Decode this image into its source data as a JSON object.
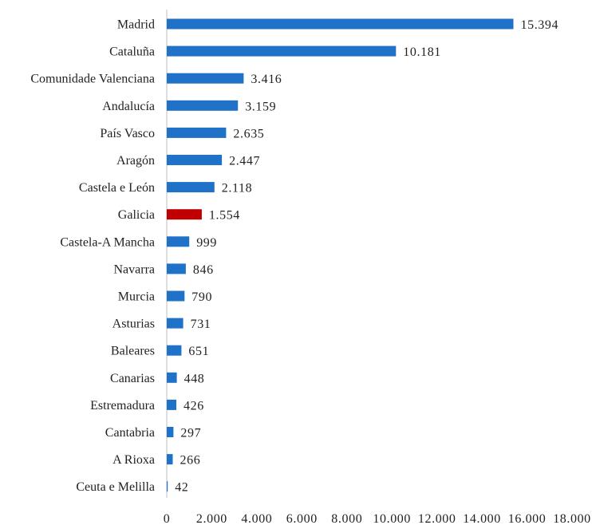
{
  "chart_data": {
    "type": "bar",
    "orientation": "horizontal",
    "categories": [
      "Madrid",
      "Cataluña",
      "Comunidade Valenciana",
      "Andalucía",
      "País Vasco",
      "Aragón",
      "Castela e León",
      "Galicia",
      "Castela-A Mancha",
      "Navarra",
      "Murcia",
      "Asturias",
      "Baleares",
      "Canarias",
      "Estremadura",
      "Cantabria",
      "A Rioxa",
      "Ceuta e Melilla"
    ],
    "values": [
      15394,
      10181,
      3416,
      3159,
      2635,
      2447,
      2118,
      1554,
      999,
      846,
      790,
      731,
      651,
      448,
      426,
      297,
      266,
      42
    ],
    "value_labels": [
      "15.394",
      "10.181",
      "3.416",
      "3.159",
      "2.635",
      "2.447",
      "2.118",
      "1.554",
      "999",
      "846",
      "790",
      "731",
      "651",
      "448",
      "426",
      "297",
      "266",
      "42"
    ],
    "xlim": [
      0,
      18000
    ],
    "xticks": [
      0,
      2000,
      4000,
      6000,
      8000,
      10000,
      12000,
      14000,
      16000,
      18000
    ],
    "xtick_labels": [
      "0",
      "2.000",
      "4.000",
      "6.000",
      "8.000",
      "10.000",
      "12.000",
      "14.000",
      "16.000",
      "18.000"
    ],
    "title": "",
    "xlabel": "",
    "ylabel": "",
    "grid": false,
    "legend": "none",
    "colors": {
      "default_bar": "#1f72c8",
      "highlight_bar": "#c00000",
      "axis": "#bfbfbf"
    },
    "highlight_category": "Galicia"
  }
}
